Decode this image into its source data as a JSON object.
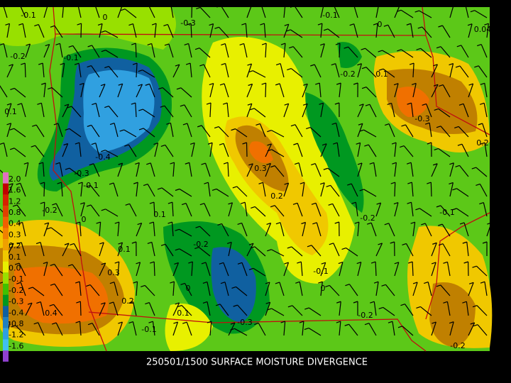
{
  "map": {
    "title": "250501/1500 SURFACE MOISTURE DIVERGENCE",
    "legend": [
      {
        "label": "2.0",
        "color": "#e070c0"
      },
      {
        "label": "1.6",
        "color": "#c00000"
      },
      {
        "label": "1.2",
        "color": "#d82000"
      },
      {
        "label": "0.8",
        "color": "#e04000"
      },
      {
        "label": "0.4",
        "color": "#f06000"
      },
      {
        "label": "0.3",
        "color": "#f08000"
      },
      {
        "label": "0.2",
        "color": "#f0a000"
      },
      {
        "label": "0.1",
        "color": "#f0c800"
      },
      {
        "label": "0.0",
        "color": "#e8f000"
      },
      {
        "label": "-0.1",
        "color": "#98e000"
      },
      {
        "label": "-0.2",
        "color": "#40c000"
      },
      {
        "label": "-0.3",
        "color": "#009820"
      },
      {
        "label": "-0.4",
        "color": "#1060a0"
      },
      {
        "label": "-0.8",
        "color": "#2080c0"
      },
      {
        "label": "-1.2",
        "color": "#30a0e0"
      },
      {
        "label": "-1.6",
        "color": "#40c0f0"
      },
      {
        "label": "-2",
        "color": "#9040d0"
      }
    ],
    "contour_labels": [
      "-0.1",
      "0",
      "-0.3",
      "-0.1",
      "0",
      "0.04",
      "-0.2",
      "-0.1",
      "-0.2",
      "0.1",
      "0.1",
      "-0.3",
      "-0.4",
      "0.3",
      "-0.3",
      "-0.1",
      "0.2",
      "0.2",
      "-0.2",
      "0.1",
      "-0.1",
      "-0.2",
      "0",
      "-0.2",
      "0.1",
      "0.3",
      "-0.1",
      "0",
      "0",
      "0.2",
      "0.4",
      "0.1",
      "-0.2",
      "-0.3",
      "-0.1",
      "-0.2"
    ]
  }
}
